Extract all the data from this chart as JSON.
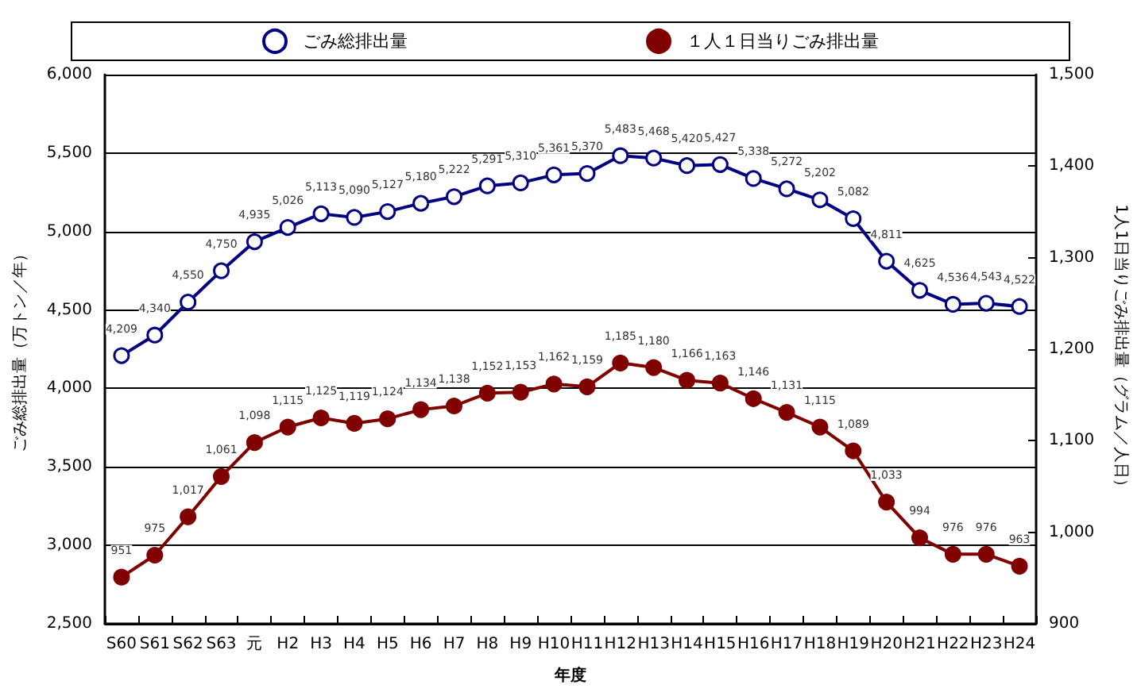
{
  "chart_data": {
    "type": "line",
    "xlabel": "年度",
    "ylabel": "ごみ総排出量（万トン／年）",
    "y2label": "1人1日当りごみ排出量（グラム／人日）",
    "categories": [
      "S60",
      "S61",
      "S62",
      "S63",
      "元",
      "H2",
      "H3",
      "H4",
      "H5",
      "H6",
      "H7",
      "H8",
      "H9",
      "H10",
      "H11",
      "H12",
      "H13",
      "H14",
      "H15",
      "H16",
      "H17",
      "H18",
      "H19",
      "H20",
      "H21",
      "H22",
      "H23",
      "H24"
    ],
    "series": [
      {
        "name": "ごみ総排出量",
        "color": "#000080",
        "marker": "circle",
        "value_labels": [
          "4,209",
          "4,340",
          "4,550",
          "4,750",
          "4,935",
          "5,026",
          "5,113",
          "5,090",
          "5,127",
          "5,180",
          "5,222",
          "5,291",
          "5,310",
          "5,361",
          "5,370",
          "5,483",
          "5,468",
          "5,420",
          "5,427",
          "5,338",
          "5,272",
          "5,202",
          "5,082",
          "4,811",
          "4,625",
          "4,536",
          "4,543",
          "4,522"
        ],
        "values": [
          4209,
          4340,
          4550,
          4750,
          4935,
          5026,
          5113,
          5090,
          5127,
          5180,
          5222,
          5291,
          5310,
          5361,
          5370,
          5483,
          5468,
          5420,
          5427,
          5338,
          5272,
          5202,
          5082,
          4811,
          4625,
          4536,
          4543,
          4522
        ]
      },
      {
        "name": "１人１日当りごみ排出量",
        "color": "#800000",
        "marker": "circle",
        "axis": "y2",
        "value_labels": [
          "951",
          "975",
          "1,017",
          "1,061",
          "1,098",
          "1,115",
          "1,125",
          "1,119",
          "1,124",
          "1,134",
          "1,138",
          "1,152",
          "1,153",
          "1,162",
          "1,159",
          "1,185",
          "1,180",
          "1,166",
          "1,163",
          "1,146",
          "1,131",
          "1,115",
          "1,089",
          "1,033",
          "994",
          "976",
          "976",
          "963"
        ],
        "values": [
          951,
          975,
          1017,
          1061,
          1098,
          1115,
          1125,
          1119,
          1124,
          1134,
          1138,
          1152,
          1153,
          1162,
          1159,
          1185,
          1180,
          1166,
          1163,
          1146,
          1131,
          1115,
          1089,
          1033,
          994,
          976,
          976,
          963
        ]
      }
    ],
    "ylim": [
      2500,
      6000
    ],
    "yticks": [
      {
        "value": 2500,
        "label": "2,500"
      },
      {
        "value": 3000,
        "label": "3,000"
      },
      {
        "value": 3500,
        "label": "3,500"
      },
      {
        "value": 4000,
        "label": "4,000"
      },
      {
        "value": 4500,
        "label": "4,500"
      },
      {
        "value": 5000,
        "label": "5,000"
      },
      {
        "value": 5500,
        "label": "5,500"
      },
      {
        "value": 6000,
        "label": "6,000"
      }
    ],
    "y2lim": [
      900,
      1500
    ],
    "y2ticks": [
      900,
      {
        "value": 1000,
        "label": "1,000"
      },
      {
        "value": 1100,
        "label": "1,100"
      },
      {
        "value": 1200,
        "label": "1,200"
      },
      {
        "value": 1300,
        "label": "1,300"
      },
      {
        "value": 1400,
        "label": "1,400"
      },
      {
        "value": 1500,
        "label": "1,500"
      }
    ],
    "grid": "y",
    "legend": "top",
    "line_style": "solid"
  }
}
